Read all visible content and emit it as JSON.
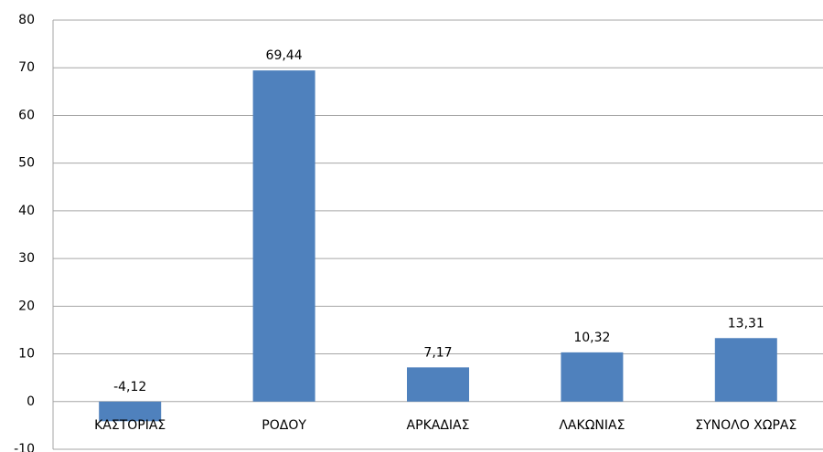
{
  "chart_data": {
    "type": "bar",
    "categories": [
      "ΚΑΣΤΟΡΙΑΣ",
      "ΡΟΔΟΥ",
      "ΑΡΚΑΔΙΑΣ",
      "ΛΑΚΩΝΙΑΣ",
      "ΣΥΝΟΛΟ ΧΩΡΑΣ"
    ],
    "values": [
      -4.12,
      69.44,
      7.17,
      10.32,
      13.31
    ],
    "value_labels": [
      "-4,12",
      "69,44",
      "7,17",
      "10,32",
      "13,31"
    ],
    "color": "#4f81bd",
    "ylim": [
      -10,
      80
    ],
    "yticks": [
      -10,
      0,
      10,
      20,
      30,
      40,
      50,
      60,
      70,
      80
    ],
    "grid": true
  }
}
